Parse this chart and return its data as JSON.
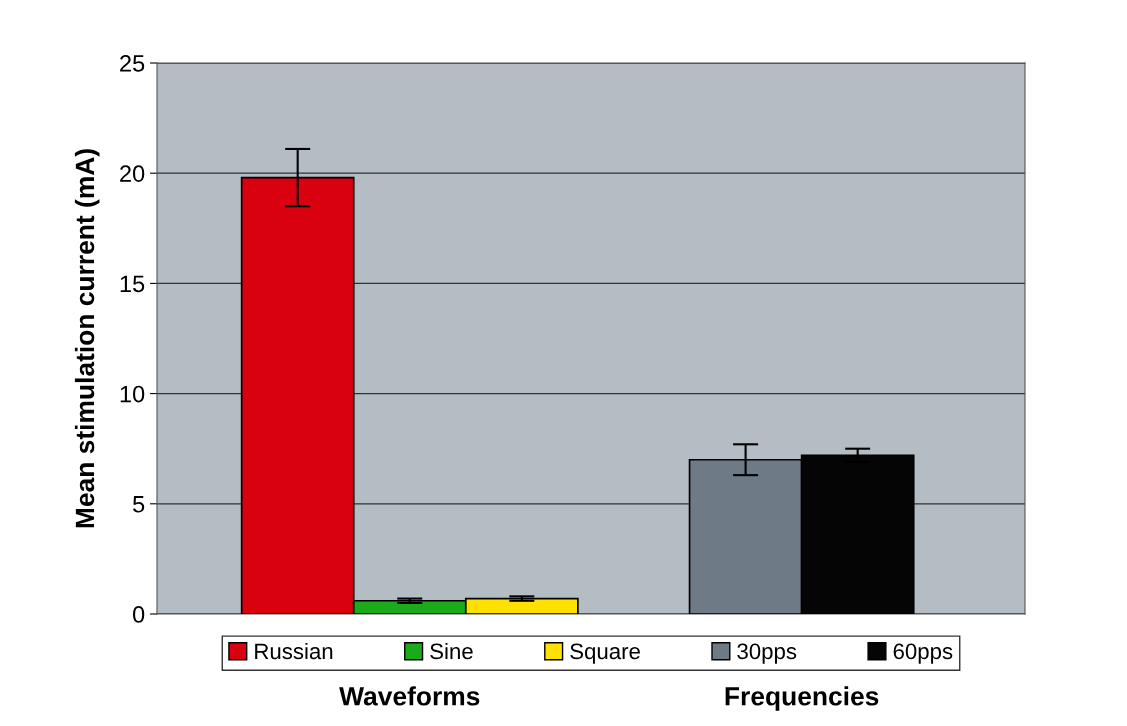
{
  "chart_data": {
    "type": "bar",
    "ylabel": "Mean stimulation current (mA)",
    "categories": [
      "Waveforms",
      "Frequencies"
    ],
    "series": [
      {
        "name": "Russian",
        "color": "#d90010",
        "values": [
          19.8,
          null
        ],
        "errors": [
          1.3,
          null
        ]
      },
      {
        "name": "Sine",
        "color": "#1aaa1a",
        "values": [
          0.6,
          null
        ],
        "errors": [
          0.1,
          null
        ]
      },
      {
        "name": "Square",
        "color": "#ffe000",
        "values": [
          0.7,
          null
        ],
        "errors": [
          0.1,
          null
        ]
      },
      {
        "name": "30pps",
        "color": "#6f7a87",
        "values": [
          null,
          7.0
        ],
        "errors": [
          null,
          0.7
        ]
      },
      {
        "name": "60pps",
        "color": "#050505",
        "values": [
          null,
          7.2
        ],
        "errors": [
          null,
          0.3
        ]
      }
    ],
    "ylim": [
      0,
      25
    ],
    "yticks": [
      0,
      5,
      10,
      15,
      20,
      25
    ],
    "grid": "y",
    "legend": "bottom"
  }
}
